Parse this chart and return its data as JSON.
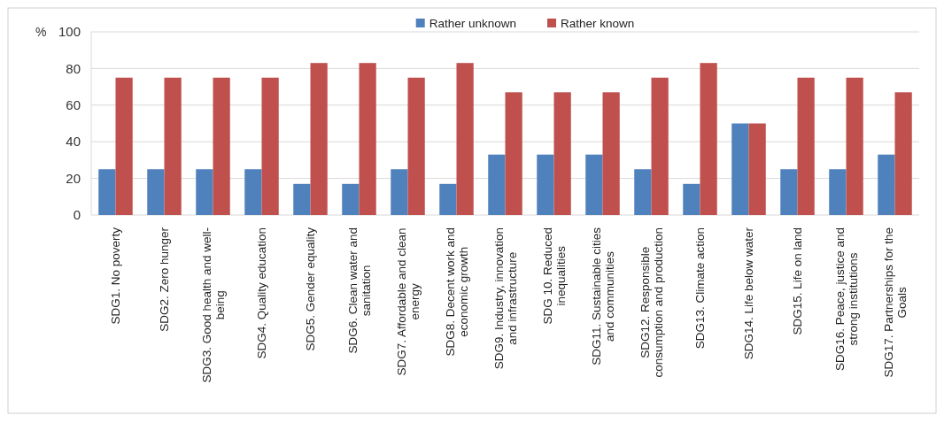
{
  "chart_data": {
    "type": "bar",
    "ylabel": "%",
    "categories": [
      "SDG1. No poverty",
      "SDG2. Zero hunger",
      "SDG3. Good health and well-being",
      "SDG4. Quality education",
      "SDG5. Gender equality",
      "SDG6. Clean water and sanitation",
      "SDG7. Affordable and clean energy",
      "SDG8. Decent work and economic growth",
      "SDG9. Industry, innovation and infrastructure",
      "SDG 10. Reduced inequalities",
      "SDG11. Sustainable cities and communities",
      "SDG12. Responsible consumption and production",
      "SDG13. Climate action",
      "SDG14. Life below water",
      "SDG15. Life on land",
      "SDG16. Peace, justice and strong institutions",
      "SDG17. Partnerships for the Goals"
    ],
    "series": [
      {
        "name": "Rather unknown",
        "color": "#4f81bd",
        "values": [
          25,
          25,
          25,
          25,
          17,
          17,
          25,
          17,
          33,
          33,
          33,
          25,
          17,
          50,
          25,
          25,
          33
        ]
      },
      {
        "name": "Rather known",
        "color": "#c0504d",
        "values": [
          75,
          75,
          75,
          75,
          83,
          83,
          75,
          83,
          67,
          67,
          67,
          75,
          83,
          50,
          75,
          75,
          67
        ]
      }
    ],
    "ylim": [
      0,
      100
    ],
    "yticks": [
      0,
      20,
      40,
      60,
      80,
      100
    ],
    "grid": "y",
    "legend": "top"
  }
}
